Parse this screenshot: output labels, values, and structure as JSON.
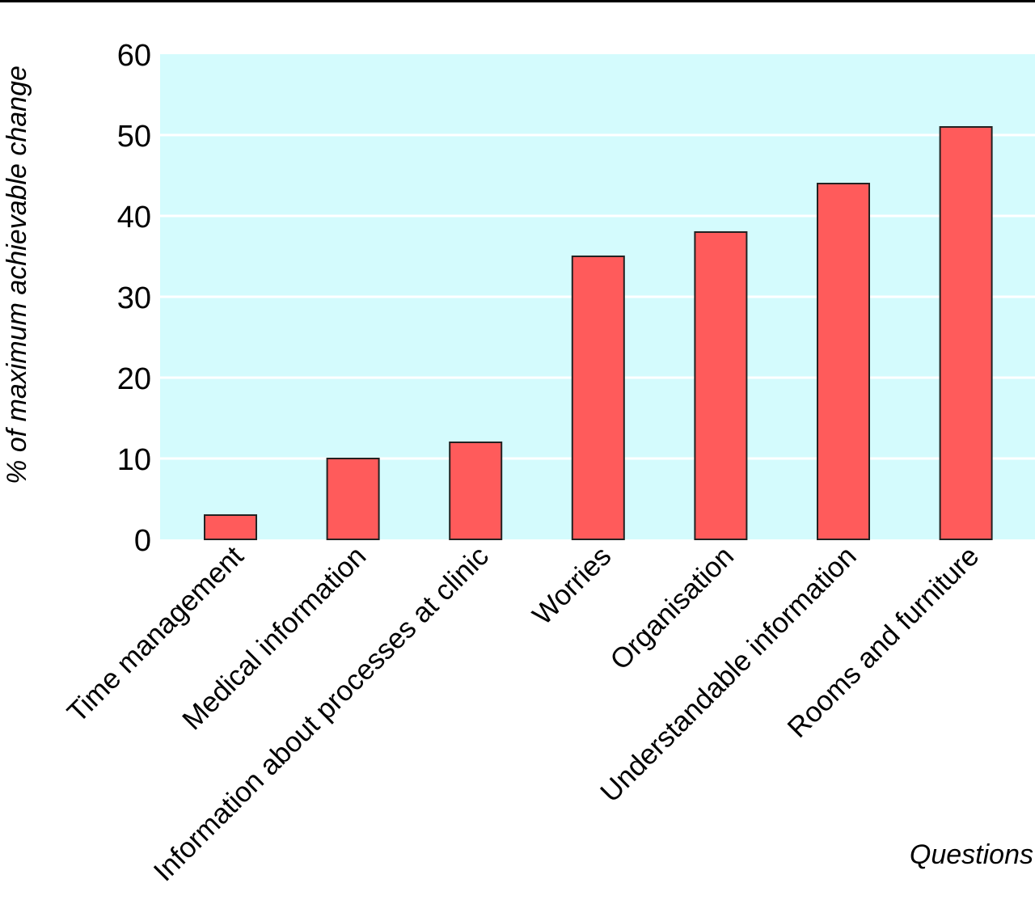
{
  "colors": {
    "plot_background": "#d4fbfd",
    "bar_fill": "#ff5b5b",
    "bar_stroke": "#222222",
    "gridline": "#ffffff",
    "top_rule": "#000000"
  },
  "chart_data": {
    "type": "bar",
    "categories": [
      "Time management",
      "Medical information",
      "Information about processes at clinic",
      "Worries",
      "Organisation",
      "Understandable information",
      "Rooms and furniture"
    ],
    "values": [
      3,
      10,
      12,
      35,
      38,
      44,
      51
    ],
    "xlabel": "Questions",
    "ylabel": "% of maximum achievable change",
    "ylim": [
      0,
      60
    ],
    "yticks": [
      0,
      10,
      20,
      30,
      40,
      50,
      60
    ],
    "grid": true,
    "legend": "none"
  }
}
